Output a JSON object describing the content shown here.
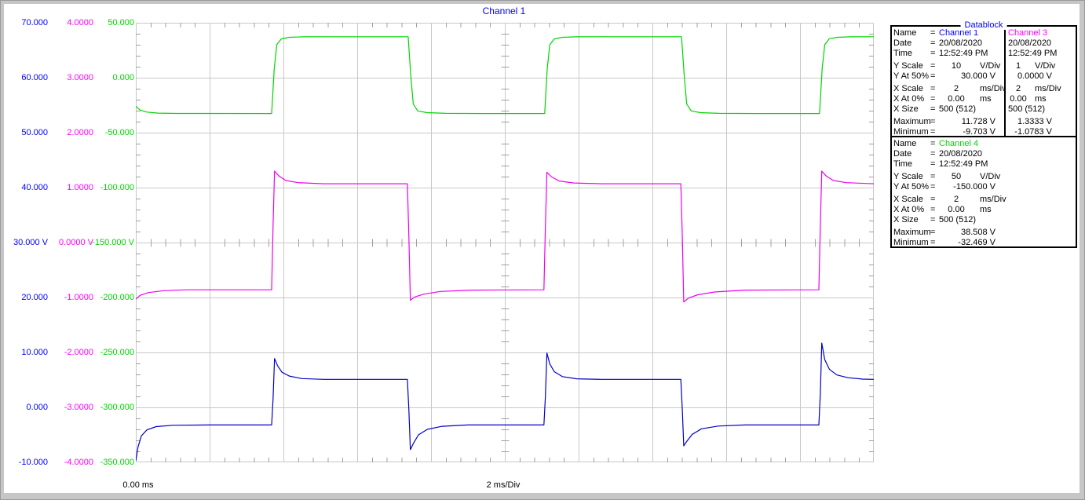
{
  "window": {
    "title": "Channel 1"
  },
  "chart_data": {
    "type": "line",
    "title": "Channel 1",
    "grid": {
      "x_divisions": 10,
      "y_divisions": 8,
      "minor_per_div": 5,
      "major_color": "#c8c8c8",
      "tick_color": "#a0a0a0"
    },
    "x_axis": {
      "label_left": "0.00 ms",
      "label_center": "2 ms/Div",
      "ms_per_div": 2,
      "range_ms": [
        0,
        20
      ]
    },
    "series": [
      {
        "name": "Channel 1",
        "label_color": "#0000ff",
        "trace_color": "#0000c8",
        "v_per_div": 10,
        "v_at_50pct": 30,
        "ticks": [
          "70.000",
          "60.000",
          "50.000",
          "40.000",
          "30.000 V",
          "20.000",
          "10.000",
          "0.000",
          "-10.000"
        ],
        "points": [
          [
            0,
            -9.7
          ],
          [
            0.06,
            -7.2
          ],
          [
            0.15,
            -5.2
          ],
          [
            0.3,
            -4.1
          ],
          [
            0.55,
            -3.5
          ],
          [
            1.0,
            -3.25
          ],
          [
            2.0,
            -3.2
          ],
          [
            3.68,
            -3.2
          ],
          [
            3.72,
            1.5
          ],
          [
            3.76,
            8.9
          ],
          [
            3.84,
            7.6
          ],
          [
            3.96,
            6.4
          ],
          [
            4.16,
            5.7
          ],
          [
            4.5,
            5.25
          ],
          [
            5.1,
            5.1
          ],
          [
            7.36,
            5.1
          ],
          [
            7.4,
            -0.5
          ],
          [
            7.44,
            -7.7
          ],
          [
            7.52,
            -6.6
          ],
          [
            7.66,
            -5.0
          ],
          [
            7.9,
            -4.0
          ],
          [
            8.3,
            -3.45
          ],
          [
            9.0,
            -3.2
          ],
          [
            11.06,
            -3.2
          ],
          [
            11.1,
            2.0
          ],
          [
            11.14,
            9.9
          ],
          [
            11.22,
            7.9
          ],
          [
            11.34,
            6.5
          ],
          [
            11.56,
            5.6
          ],
          [
            11.95,
            5.2
          ],
          [
            12.6,
            5.1
          ],
          [
            14.77,
            5.1
          ],
          [
            14.81,
            -0.5
          ],
          [
            14.85,
            -7.0
          ],
          [
            14.93,
            -6.2
          ],
          [
            15.08,
            -4.9
          ],
          [
            15.33,
            -3.9
          ],
          [
            15.78,
            -3.4
          ],
          [
            16.5,
            -3.2
          ],
          [
            18.51,
            -3.2
          ],
          [
            18.55,
            2.5
          ],
          [
            18.59,
            11.7
          ],
          [
            18.67,
            8.7
          ],
          [
            18.8,
            6.9
          ],
          [
            19.0,
            5.9
          ],
          [
            19.3,
            5.4
          ],
          [
            19.7,
            5.15
          ],
          [
            20,
            5.1
          ]
        ]
      },
      {
        "name": "Channel 3",
        "label_color": "#ff00ff",
        "trace_color": "#ee00ee",
        "v_per_div": 1,
        "v_at_50pct": 0,
        "ticks": [
          "4.0000",
          "3.0000",
          "2.0000",
          "1.0000",
          "0.0000 V",
          "-1.0000",
          "-2.0000",
          "-3.0000",
          "-4.0000"
        ],
        "points": [
          [
            0,
            -1.03
          ],
          [
            0.12,
            -0.96
          ],
          [
            0.35,
            -0.91
          ],
          [
            0.75,
            -0.875
          ],
          [
            1.4,
            -0.86
          ],
          [
            3.68,
            -0.86
          ],
          [
            3.72,
            0.3
          ],
          [
            3.76,
            1.3
          ],
          [
            3.88,
            1.21
          ],
          [
            4.06,
            1.13
          ],
          [
            4.4,
            1.09
          ],
          [
            5.1,
            1.07
          ],
          [
            7.36,
            1.07
          ],
          [
            7.4,
            0.1
          ],
          [
            7.44,
            -1.05
          ],
          [
            7.56,
            -0.99
          ],
          [
            7.8,
            -0.94
          ],
          [
            8.25,
            -0.89
          ],
          [
            9.1,
            -0.865
          ],
          [
            11.06,
            -0.86
          ],
          [
            11.1,
            0.3
          ],
          [
            11.14,
            1.28
          ],
          [
            11.26,
            1.2
          ],
          [
            11.47,
            1.12
          ],
          [
            11.87,
            1.085
          ],
          [
            12.6,
            1.07
          ],
          [
            14.77,
            1.07
          ],
          [
            14.81,
            0.1
          ],
          [
            14.85,
            -1.08
          ],
          [
            14.98,
            -1.01
          ],
          [
            15.23,
            -0.95
          ],
          [
            15.68,
            -0.9
          ],
          [
            16.5,
            -0.865
          ],
          [
            18.51,
            -0.86
          ],
          [
            18.55,
            0.3
          ],
          [
            18.59,
            1.3
          ],
          [
            18.71,
            1.21
          ],
          [
            18.9,
            1.13
          ],
          [
            19.25,
            1.09
          ],
          [
            19.85,
            1.075
          ],
          [
            20,
            1.07
          ]
        ]
      },
      {
        "name": "Channel 4",
        "label_color": "#00d400",
        "trace_color": "#00d400",
        "v_per_div": 50,
        "v_at_50pct": -150,
        "ticks": [
          "50.000",
          "0.000",
          "-50.000",
          "-100.000",
          "-150.000 V",
          "-200.000",
          "-250.000",
          "-300.000",
          "-350.000"
        ],
        "points": [
          [
            0,
            -26
          ],
          [
            0.12,
            -29.5
          ],
          [
            0.3,
            -31.3
          ],
          [
            0.6,
            -32.2
          ],
          [
            1.1,
            -32.5
          ],
          [
            3.68,
            -32.6
          ],
          [
            3.75,
            8
          ],
          [
            3.82,
            30
          ],
          [
            3.94,
            35.3
          ],
          [
            4.16,
            36.8
          ],
          [
            4.56,
            37.2
          ],
          [
            5.4,
            37.3
          ],
          [
            7.38,
            37.3
          ],
          [
            7.45,
            3
          ],
          [
            7.52,
            -24
          ],
          [
            7.64,
            -30.2
          ],
          [
            7.89,
            -31.8
          ],
          [
            8.4,
            -32.4
          ],
          [
            9.4,
            -32.6
          ],
          [
            11.08,
            -32.6
          ],
          [
            11.15,
            8
          ],
          [
            11.22,
            30
          ],
          [
            11.34,
            35.3
          ],
          [
            11.56,
            36.8
          ],
          [
            11.96,
            37.2
          ],
          [
            12.8,
            37.3
          ],
          [
            14.79,
            37.3
          ],
          [
            14.86,
            3
          ],
          [
            14.93,
            -24
          ],
          [
            15.05,
            -30.2
          ],
          [
            15.3,
            -31.8
          ],
          [
            15.8,
            -32.4
          ],
          [
            16.8,
            -32.6
          ],
          [
            18.53,
            -32.6
          ],
          [
            18.6,
            8
          ],
          [
            18.67,
            30
          ],
          [
            18.79,
            35.3
          ],
          [
            19.0,
            36.8
          ],
          [
            19.4,
            37.2
          ],
          [
            20,
            37.3
          ]
        ]
      }
    ]
  },
  "datablock": {
    "title": "Datablock",
    "col_labels": [
      "Name",
      "Date",
      "Time",
      "Y Scale",
      "Y At 50%",
      "X Scale",
      "X At 0%",
      "X Size",
      "Maximum",
      "Minimum"
    ],
    "gap_before": [
      3,
      5,
      8
    ],
    "channel1_rows": [
      {
        "value": "Channel 1",
        "color": "#0000ff"
      },
      {
        "value": "20/08/2020"
      },
      {
        "value": "12:52:49 PM"
      },
      {
        "value": "10",
        "unit": "V/Div"
      },
      {
        "value": "30.000 V",
        "align": "num"
      },
      {
        "value": "2",
        "unit": "ms/Div"
      },
      {
        "value": "0.00",
        "unit": "ms"
      },
      {
        "value": "500 (512)"
      },
      {
        "value": "11.728 V",
        "align": "num"
      },
      {
        "value": "-9.703 V",
        "align": "num"
      }
    ],
    "channel3_rows": [
      {
        "value": "Channel 3",
        "color": "#ff00ff"
      },
      {
        "value": "20/08/2020"
      },
      {
        "value": "12:52:49 PM"
      },
      {
        "value": "1",
        "unit": "V/Div"
      },
      {
        "value": "0.0000 V",
        "align": "num"
      },
      {
        "value": "2",
        "unit": "ms/Div"
      },
      {
        "value": "0.00",
        "unit": "ms"
      },
      {
        "value": "500 (512)"
      },
      {
        "value": "1.3333 V",
        "align": "num"
      },
      {
        "value": "-1.0783 V",
        "align": "num"
      }
    ],
    "channel4_rows": [
      {
        "value": "Channel 4",
        "color": "#00d400"
      },
      {
        "value": "20/08/2020"
      },
      {
        "value": "12:52:49 PM"
      },
      {
        "value": "50",
        "unit": "V/Div"
      },
      {
        "value": "-150.000 V",
        "align": "num"
      },
      {
        "value": "2",
        "unit": "ms/Div"
      },
      {
        "value": "0.00",
        "unit": "ms"
      },
      {
        "value": "500 (512)"
      },
      {
        "value": "38.508 V",
        "align": "num"
      },
      {
        "value": "-32.469 V",
        "align": "num"
      }
    ]
  }
}
